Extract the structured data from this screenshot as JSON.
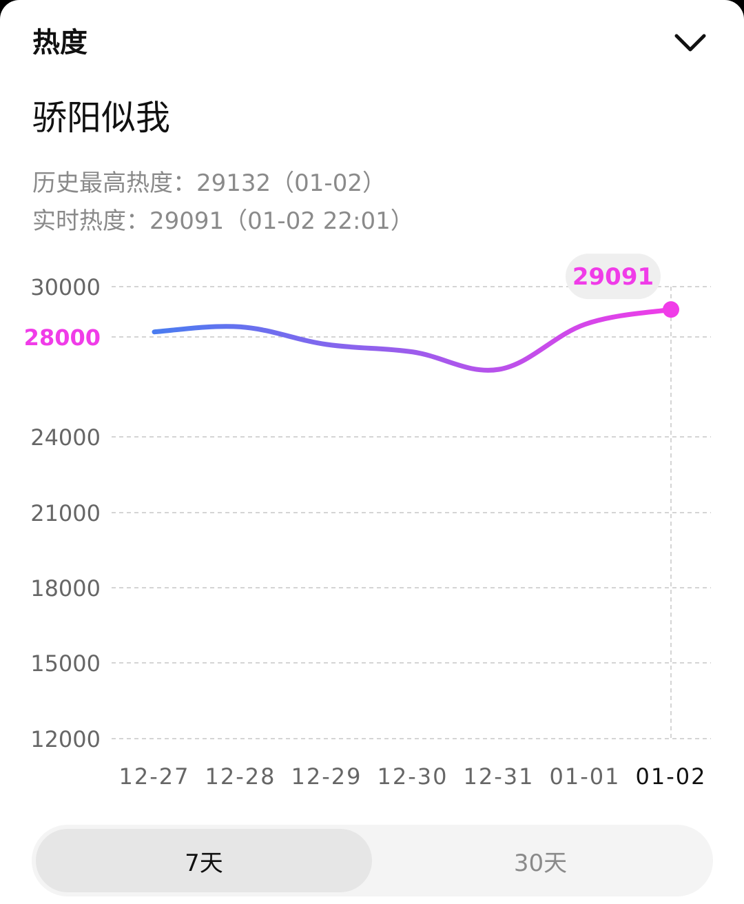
{
  "header": {
    "title": "热度",
    "collapse_icon": "chevron-down-icon"
  },
  "topic": {
    "name": "骄阳似我"
  },
  "stats": {
    "history_high": "历史最高热度：29132（01-02）",
    "realtime": "实时热度：29091（01-02 22:01）"
  },
  "range_toggle": {
    "options": [
      {
        "label": "7天",
        "active": true
      },
      {
        "label": "30天",
        "active": false
      }
    ]
  },
  "colors": {
    "accent": "#f03ce8",
    "line_start": "#4a7cf0",
    "line_end": "#f03ce8",
    "tooltip_bg": "#efefef",
    "grid": "#d4d4d4",
    "tick_text": "#666666"
  },
  "chart_data": {
    "type": "line",
    "categories": [
      "12-27",
      "12-28",
      "12-29",
      "12-30",
      "12-31",
      "01-01",
      "01-02"
    ],
    "series": [
      {
        "values": [
          28200,
          28400,
          27700,
          27400,
          26700,
          28500,
          29091
        ]
      }
    ],
    "y_ticks": [
      "30000",
      "28000",
      "24000",
      "21000",
      "18000",
      "15000",
      "12000"
    ],
    "highlighted_tick": "28000",
    "selected_category": "01-02",
    "tooltip": {
      "value": "29091"
    },
    "ylim": [
      12000,
      30000
    ],
    "grid": true
  }
}
